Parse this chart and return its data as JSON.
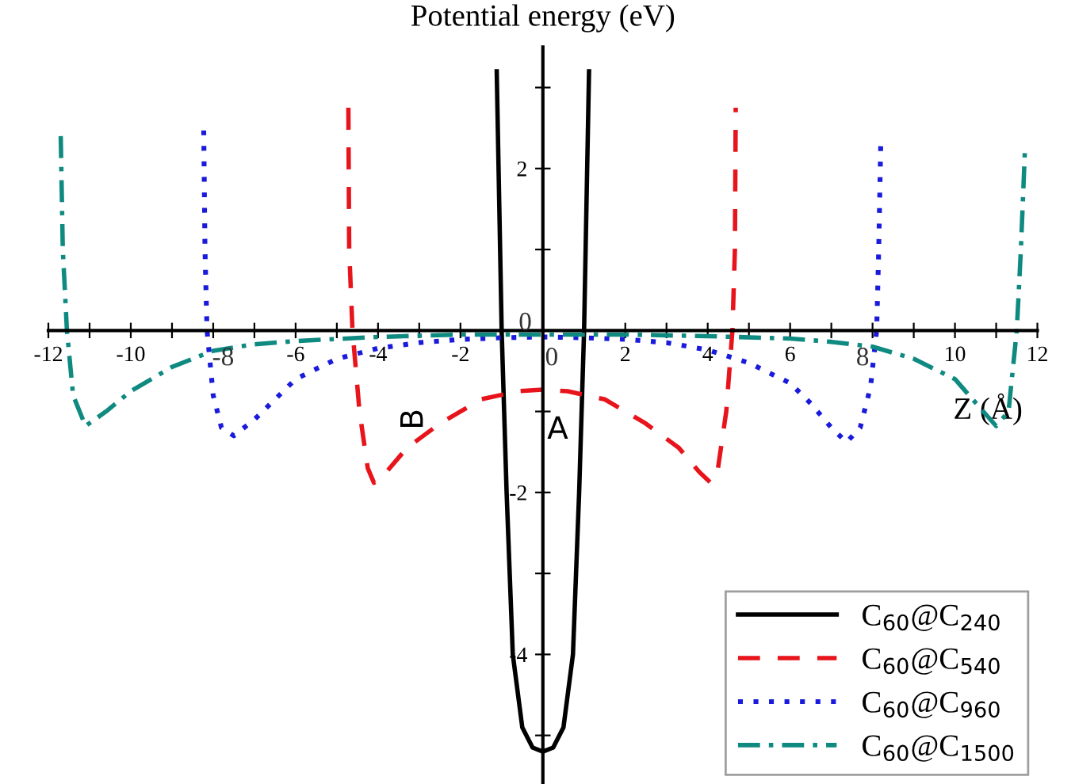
{
  "chart_data": {
    "type": "line",
    "ylabel": "Potential energy (eV)",
    "xlabel": "Z (Å)",
    "xlim": [
      -12,
      12
    ],
    "ylim": [
      -5.6,
      3.5
    ],
    "xticks": [
      -12,
      {
        "value": -11,
        "label": null
      },
      -10,
      {
        "value": -9,
        "label": null
      },
      -8,
      {
        "value": -7,
        "label": null
      },
      -6,
      {
        "value": -5,
        "label": null
      },
      -4,
      {
        "value": -3,
        "label": null
      },
      -2,
      {
        "value": -1,
        "label": null
      },
      0,
      {
        "value": 1,
        "label": null
      },
      2,
      {
        "value": 3,
        "label": null
      },
      4,
      {
        "value": 5,
        "label": null
      },
      6,
      {
        "value": 7,
        "label": null
      },
      8,
      {
        "value": 9,
        "label": null
      },
      10,
      {
        "value": 11,
        "label": null
      },
      12
    ],
    "yticks": [
      {
        "value": -5,
        "label": null
      },
      -4,
      {
        "value": -3,
        "label": null
      },
      -2,
      {
        "value": -1,
        "label": null
      },
      0,
      {
        "value": 1,
        "label": null
      },
      2,
      {
        "value": 3,
        "label": null
      }
    ],
    "grid": false,
    "legend": "bottom right",
    "marker": "none",
    "annotations": [
      "B",
      "A"
    ],
    "series": [
      {
        "name": "C$_{60}$@C$_{240}$",
        "color": "#000000",
        "line_style": "solid",
        "x": [
          -1.12,
          -1.0,
          -0.88,
          -0.73,
          -0.5,
          -0.25,
          0,
          0.25,
          0.5,
          0.73,
          0.88,
          1.0,
          1.12
        ],
        "values": [
          3.2,
          0,
          -2,
          -4,
          -4.9,
          -5.15,
          -5.2,
          -5.15,
          -4.9,
          -4,
          -2,
          0,
          3.2
        ]
      },
      {
        "name": "C$_{60}$@C$_{540}$",
        "color": "#e8141c",
        "line_style": "dashed",
        "x": [
          -4.72,
          -4.7,
          -4.62,
          -4.45,
          -4.25,
          -4.1,
          -3.8,
          -3.3,
          -2.5,
          -1.5,
          -0.6,
          0,
          0.6,
          1.5,
          2.5,
          3.3,
          3.8,
          4.07,
          4.25,
          4.45,
          4.6,
          4.66,
          4.68
        ],
        "values": [
          2.75,
          1.0,
          0,
          -1.0,
          -1.7,
          -1.88,
          -1.75,
          -1.45,
          -1.15,
          -0.85,
          -0.75,
          -0.73,
          -0.75,
          -0.85,
          -1.15,
          -1.45,
          -1.75,
          -1.88,
          -1.7,
          -1.0,
          0,
          1.0,
          2.75
        ]
      },
      {
        "name": "C$_{60}$@C$_{960}$",
        "color": "#1a1adc",
        "line_style": "dotted",
        "x": [
          -8.23,
          -8.2,
          -8.15,
          -8.0,
          -7.8,
          -7.5,
          -7.0,
          -6.5,
          -6,
          -5,
          -4,
          -3,
          -2,
          -1,
          0,
          1,
          2,
          3,
          4,
          5,
          6,
          6.5,
          7,
          7.37,
          7.7,
          7.95,
          8.1,
          8.15,
          8.2
        ],
        "values": [
          2.47,
          1,
          0,
          -0.8,
          -1.2,
          -1.3,
          -1.1,
          -0.85,
          -0.6,
          -0.35,
          -0.22,
          -0.15,
          -0.11,
          -0.09,
          -0.08,
          -0.09,
          -0.11,
          -0.15,
          -0.24,
          -0.4,
          -0.65,
          -0.9,
          -1.2,
          -1.38,
          -1.2,
          -0.7,
          0,
          1,
          2.33
        ]
      },
      {
        "name": "C$_{60}$@C$_{1500}$",
        "color": "#0f8a80",
        "line_style": "dashdot",
        "x": [
          -11.7,
          -11.65,
          -11.55,
          -11.4,
          -11.1,
          -10.6,
          -10,
          -9,
          -8,
          -7,
          -6,
          -4,
          -2,
          0,
          2,
          4,
          6,
          7,
          8,
          9,
          10,
          10.6,
          11.0,
          11.3,
          11.5,
          11.6,
          11.7
        ],
        "values": [
          2.4,
          1,
          0,
          -0.8,
          -1.18,
          -1.0,
          -0.75,
          -0.45,
          -0.25,
          -0.17,
          -0.13,
          -0.08,
          -0.05,
          -0.05,
          -0.05,
          -0.07,
          -0.1,
          -0.14,
          -0.2,
          -0.35,
          -0.6,
          -0.95,
          -1.18,
          -1.0,
          0,
          1,
          2.25
        ]
      }
    ]
  }
}
